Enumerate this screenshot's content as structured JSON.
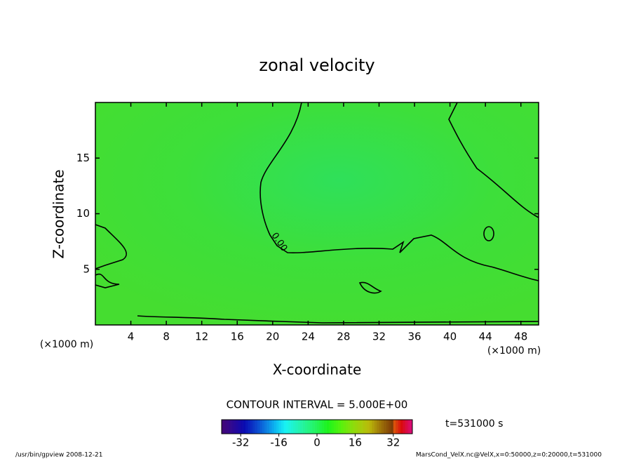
{
  "chart_data": {
    "type": "contour",
    "title": "zonal velocity",
    "x_label": "X-coordinate",
    "y_label": "Z-coordinate",
    "x_unit": "(×1000 m)",
    "y_unit": "(×1000 m)",
    "xlim": [
      0,
      50
    ],
    "ylim": [
      0,
      20
    ],
    "xticks": [
      4,
      8,
      12,
      16,
      20,
      24,
      28,
      32,
      36,
      40,
      44,
      48
    ],
    "yticks": [
      5,
      10,
      15
    ],
    "contour_levels": [
      {
        "value": 0,
        "label": "0.00"
      }
    ],
    "contour_interval": "CONTOUR INTERVAL = 5.000E+00",
    "colorbar": {
      "lim": [
        -40,
        40
      ],
      "ticks": [
        -32,
        -16,
        0,
        16,
        32
      ]
    },
    "time_label": "t=531000 s",
    "footer_left": "/usr/bin/gpview   2008-12-21",
    "footer_right": "MarsCond_VelX.nc@VelX,x=0:50000,z=0:20000,t=531000"
  }
}
